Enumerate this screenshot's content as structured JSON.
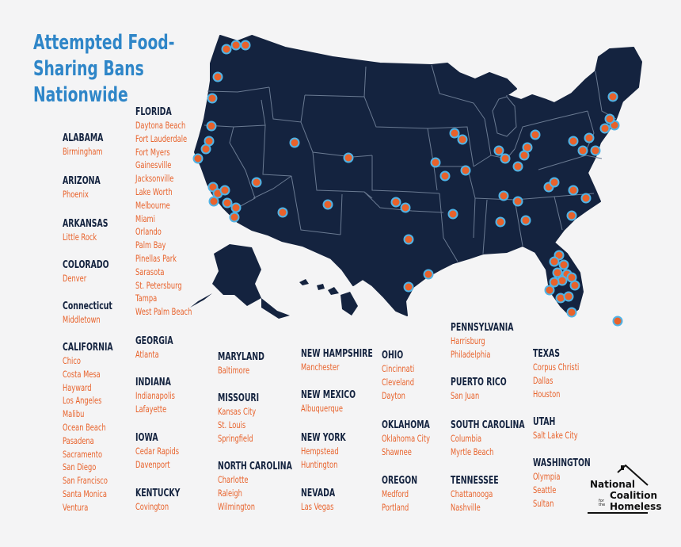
{
  "title_lines": [
    "Attempted Food-",
    "Sharing Bans",
    "Nationwide"
  ],
  "colors": {
    "background": "#f4f4f5",
    "map_fill": "#14233f",
    "state_border": "#6a7a92",
    "marker_fill": "#e8622b",
    "marker_ring": "#4fb3e6",
    "title": "#2f86c8",
    "state_label": "#14233f",
    "city_label": "#e8622b"
  },
  "states": [
    {
      "name": "ALABAMA",
      "cities": [
        "Birmingham"
      ]
    },
    {
      "name": "ARIZONA",
      "cities": [
        "Phoenix"
      ]
    },
    {
      "name": "ARKANSAS",
      "cities": [
        "Little Rock"
      ]
    },
    {
      "name": "COLORADO",
      "cities": [
        "Denver"
      ]
    },
    {
      "name": "Connecticut",
      "cities": [
        "Middletown"
      ]
    },
    {
      "name": "CALIFORNIA",
      "cities": [
        "Chico",
        "Costa Mesa",
        "Hayward",
        "Los Angeles",
        "Malibu",
        "Ocean Beach",
        "Pasadena",
        "Sacramento",
        "San Diego",
        "San Francisco",
        "Santa Monica",
        "Ventura"
      ]
    },
    {
      "name": "FLORIDA",
      "cities": [
        "Daytona Beach",
        "Fort Lauderdale",
        "Fort Myers",
        "Gainesville",
        "Jacksonville",
        "Lake Worth",
        "Melbourne",
        "Miami",
        "Orlando",
        "Palm Bay",
        "Pinellas Park",
        "Sarasota",
        "St. Petersburg",
        "Tampa",
        "West Palm Beach"
      ]
    },
    {
      "name": "GEORGIA",
      "cities": [
        "Atlanta"
      ]
    },
    {
      "name": "INDIANA",
      "cities": [
        "Indianapolis",
        "Lafayette"
      ]
    },
    {
      "name": "IOWA",
      "cities": [
        "Cedar Rapids",
        "Davenport"
      ]
    },
    {
      "name": "KENTUCKY",
      "cities": [
        "Covington"
      ]
    },
    {
      "name": "MARYLAND",
      "cities": [
        "Baltimore"
      ]
    },
    {
      "name": "MISSOURI",
      "cities": [
        "Kansas City",
        "St. Louis",
        "Springfield"
      ]
    },
    {
      "name": "NORTH CAROLINA",
      "cities": [
        "Charlotte",
        "Raleigh",
        "Wilmington"
      ]
    },
    {
      "name": "NEW HAMPSHIRE",
      "cities": [
        "Manchester"
      ]
    },
    {
      "name": "NEW MEXICO",
      "cities": [
        "Albuquerque"
      ]
    },
    {
      "name": "NEW YORK",
      "cities": [
        "Hempstead",
        "Huntington"
      ]
    },
    {
      "name": "NEVADA",
      "cities": [
        "Las Vegas"
      ]
    },
    {
      "name": "OHIO",
      "cities": [
        "Cincinnati",
        "Cleveland",
        "Dayton"
      ]
    },
    {
      "name": "OKLAHOMA",
      "cities": [
        "Oklahoma City",
        "Shawnee"
      ]
    },
    {
      "name": "OREGON",
      "cities": [
        "Medford",
        "Portland"
      ]
    },
    {
      "name": "PENNSYLVANIA",
      "cities": [
        "Harrisburg",
        "Philadelphia"
      ]
    },
    {
      "name": "PUERTO RICO",
      "cities": [
        "San Juan"
      ]
    },
    {
      "name": "SOUTH CAROLINA",
      "cities": [
        "Columbia",
        "Myrtle Beach"
      ]
    },
    {
      "name": "TENNESSEE",
      "cities": [
        "Chattanooga",
        "Nashville"
      ]
    },
    {
      "name": "TEXAS",
      "cities": [
        "Corpus Christi",
        "Dallas",
        "Houston"
      ]
    },
    {
      "name": "UTAH",
      "cities": [
        "Salt Lake City"
      ]
    },
    {
      "name": "WASHINGTON",
      "cities": [
        "Olympia",
        "Seattle",
        "Sultan"
      ]
    }
  ],
  "logo": {
    "line1": "National",
    "line2": "Coalition",
    "small": "for the",
    "line3": "Homeless"
  }
}
